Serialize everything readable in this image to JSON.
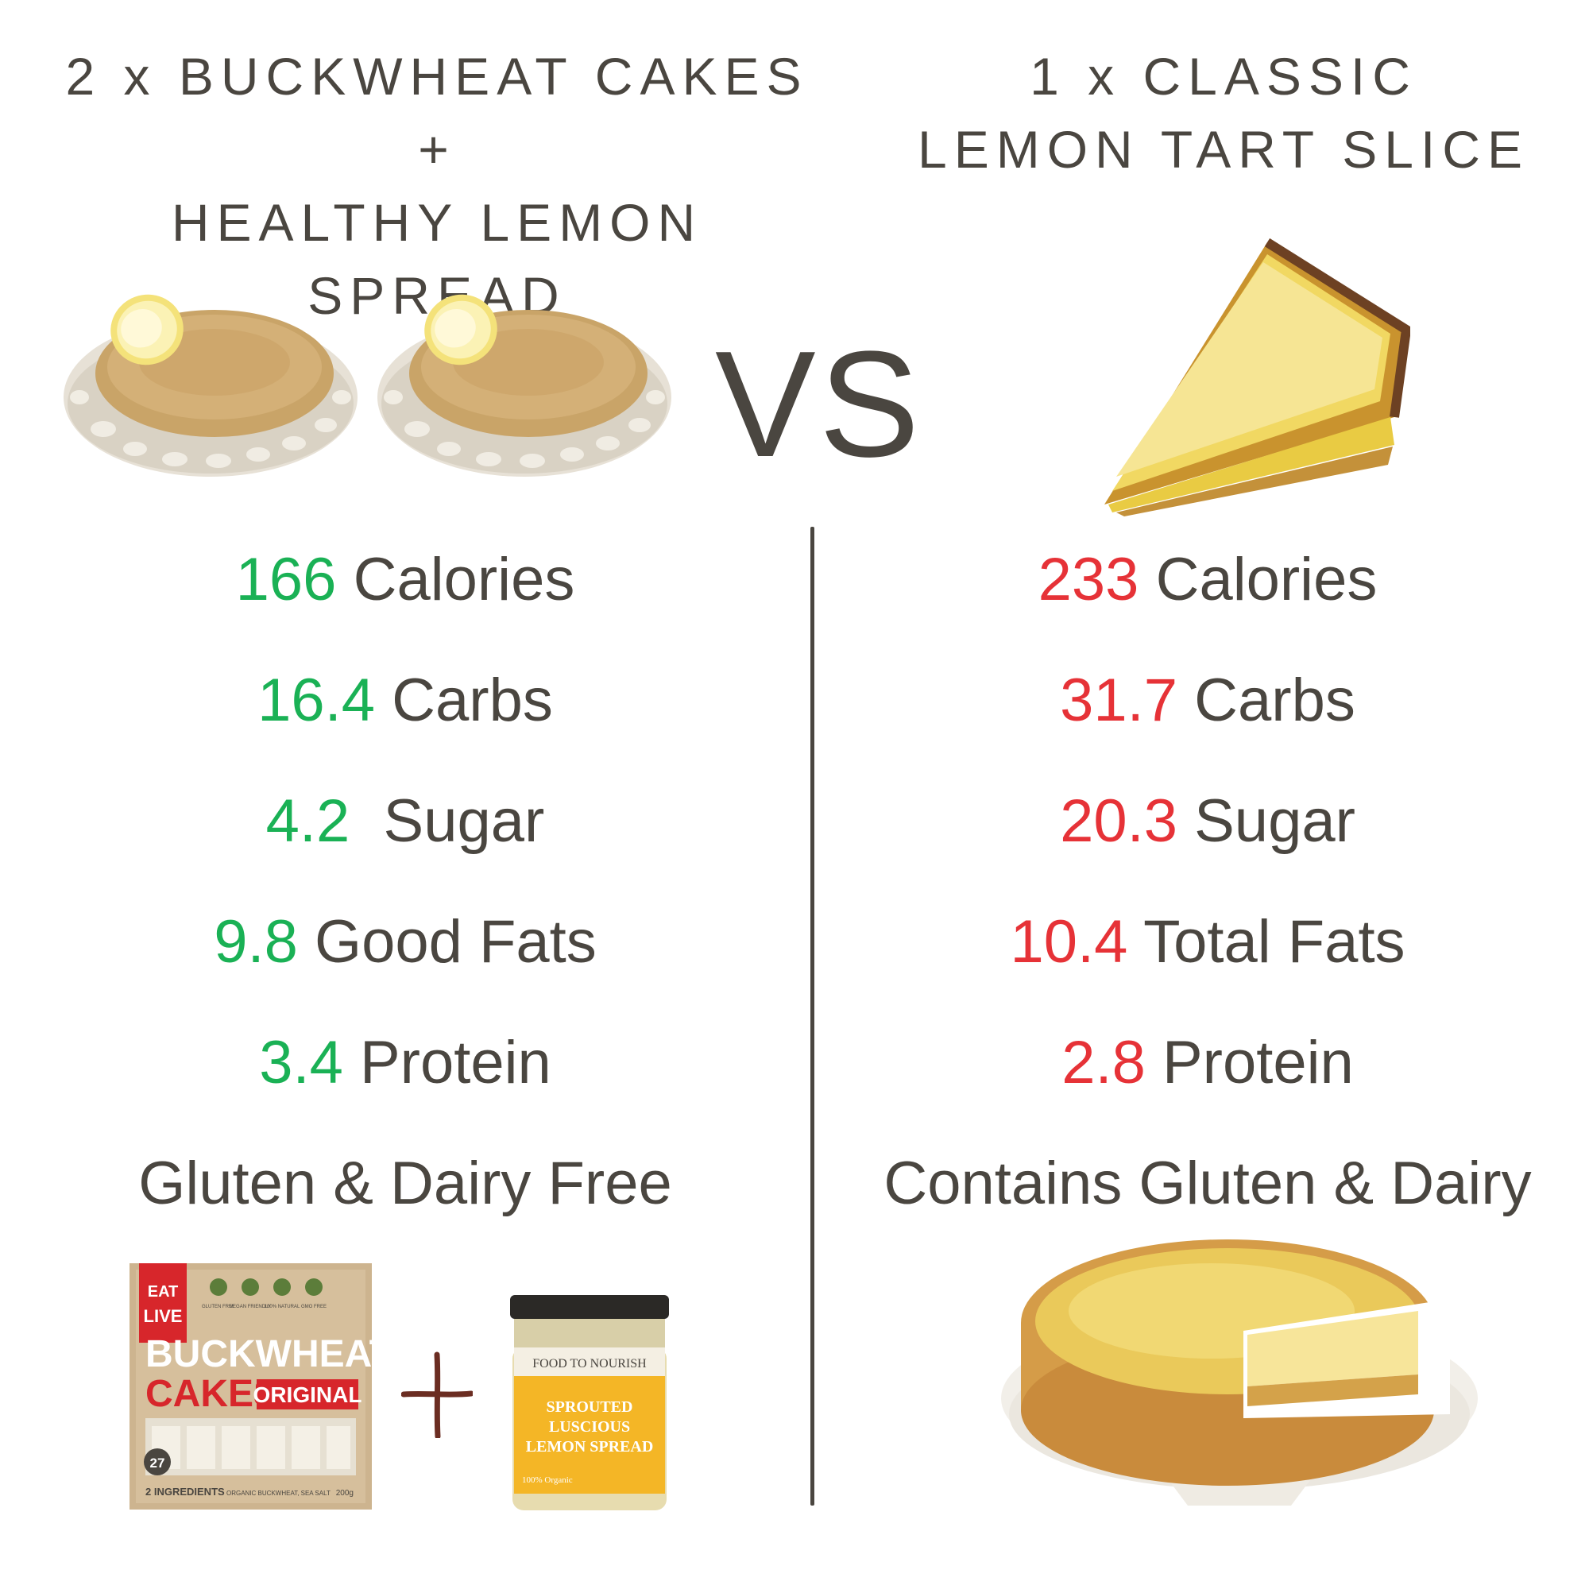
{
  "left": {
    "title_line1": "2 x BUCKWHEAT CAKES +",
    "title_line2": "HEALTHY LEMON SPREAD",
    "stats": [
      {
        "value": "166",
        "label": " Calories"
      },
      {
        "value": "16.4",
        "label": " Carbs"
      },
      {
        "value": "4.2",
        "label": "  Sugar"
      },
      {
        "value": "9.8",
        "label": " Good Fats"
      },
      {
        "value": "3.4",
        "label": " Protein"
      }
    ],
    "note": "Gluten & Dairy Free",
    "box": {
      "brand_line1": "EAT",
      "brand_line2": "LIVE",
      "product_line1": "BUCKWHEAT",
      "product_line2": "CAKES",
      "variant": "ORIGINAL",
      "badges": [
        "GLUTEN FREE",
        "VEGAN FRIENDLY",
        "100% NATURAL",
        "GMO FREE"
      ],
      "calories": "27",
      "ingredients": "2 INGREDIENTS",
      "ingredients_detail": "ORGANIC BUCKWHEAT, SEA SALT",
      "weight": "200g"
    },
    "jar": {
      "brand": "FOOD TO NOURISH",
      "line1": "SPROUTED",
      "line2": "LUSCIOUS",
      "line3": "LEMON SPREAD",
      "footer": "100% Organic"
    }
  },
  "vs_label": "VS",
  "right": {
    "title_line1": "1 x CLASSIC",
    "title_line2": "LEMON TART SLICE",
    "stats": [
      {
        "value": "233",
        "label": " Calories"
      },
      {
        "value": "31.7",
        "label": " Carbs"
      },
      {
        "value": "20.3",
        "label": " Sugar"
      },
      {
        "value": "10.4",
        "label": " Total Fats"
      },
      {
        "value": "2.8",
        "label": " Protein"
      }
    ],
    "note": "Contains Gluten & Dairy"
  },
  "colors": {
    "good": "#1ab155",
    "bad": "#e63237",
    "text": "#4a4640"
  }
}
